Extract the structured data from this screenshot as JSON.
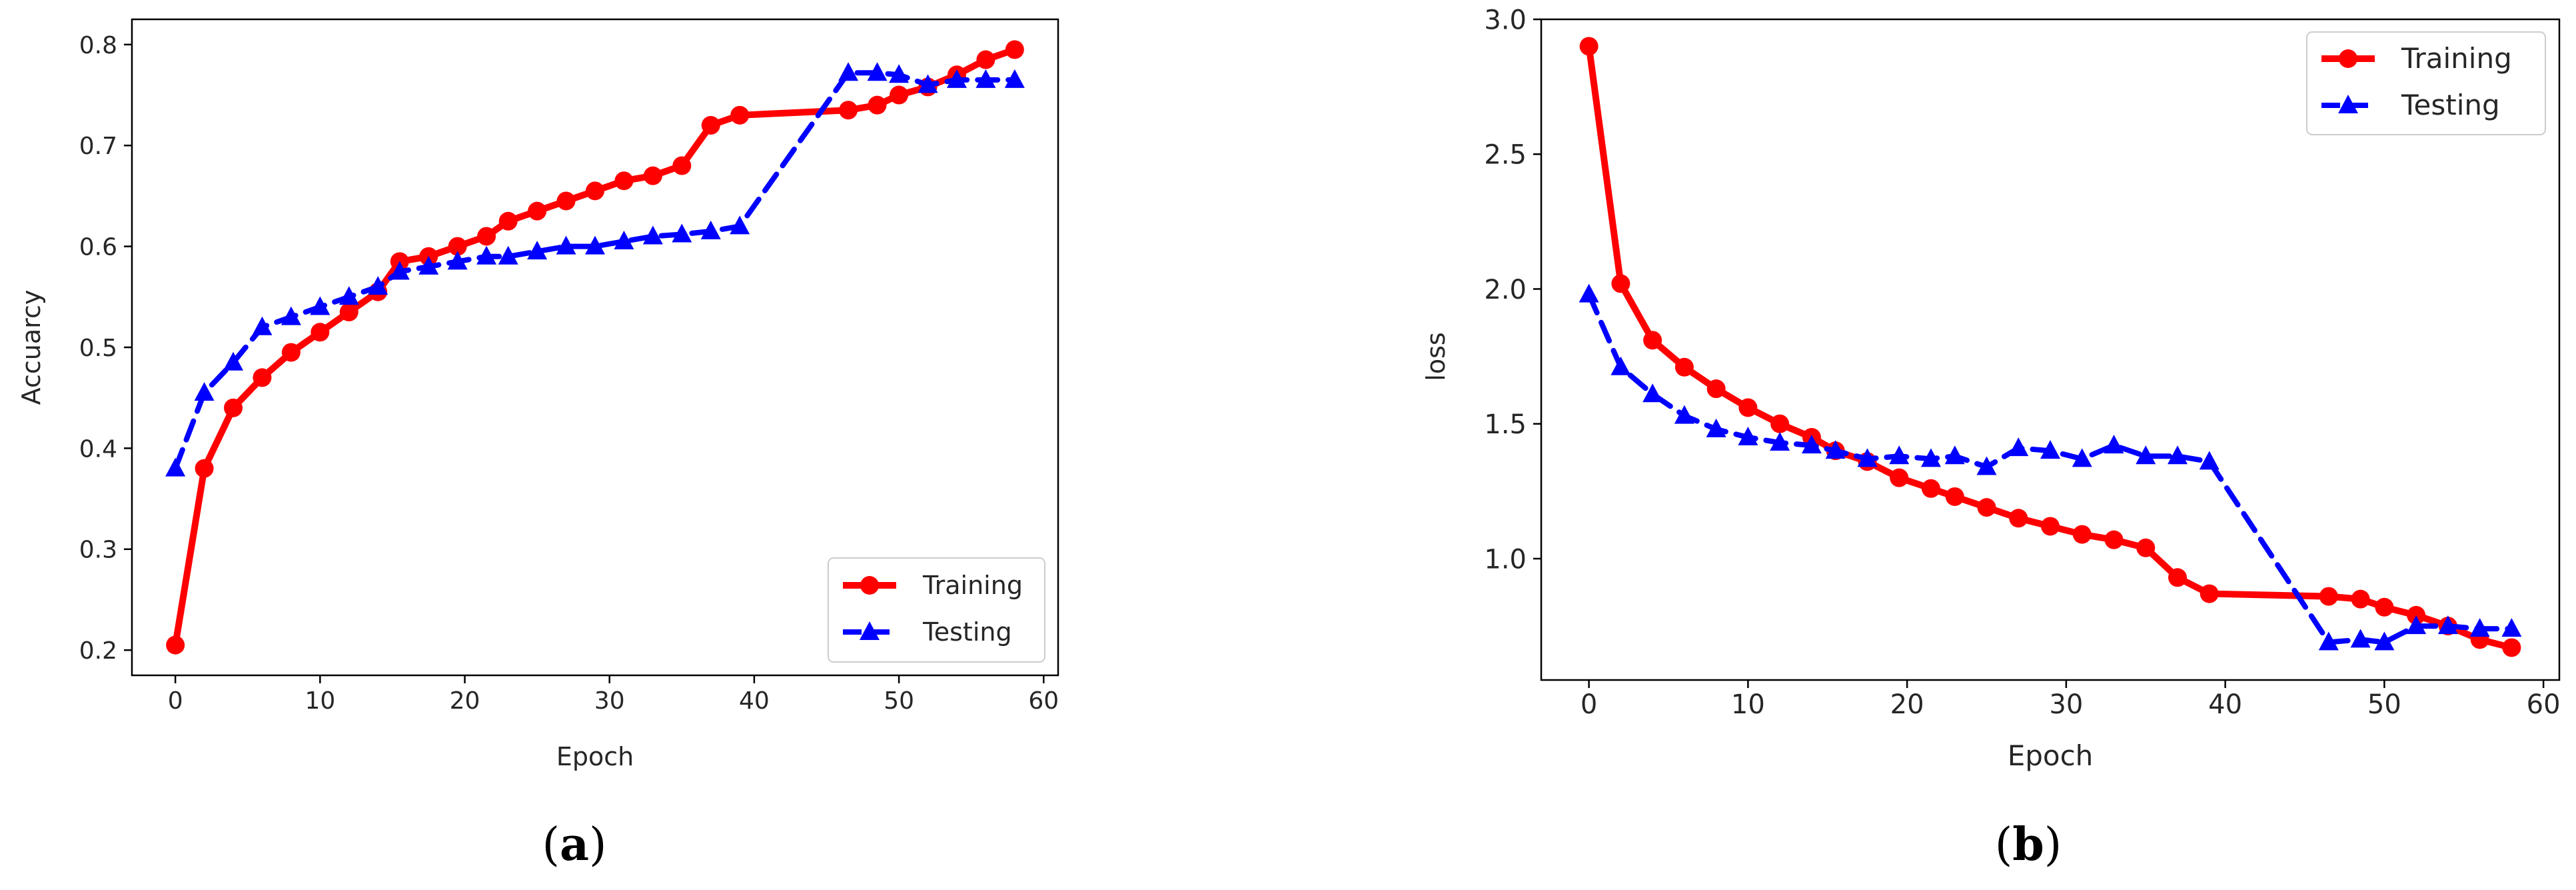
{
  "colors": {
    "training": "#ff0000",
    "testing": "#0000ff",
    "axis": "#000000",
    "text": "#262626"
  },
  "chart_data": [
    {
      "type": "line",
      "caption_letter": "a",
      "xlabel": "Epoch",
      "ylabel": "Accuarcy",
      "xlim": [
        -3.0,
        61.0
      ],
      "ylim": [
        0.175,
        0.825
      ],
      "xticks": [
        0,
        10,
        20,
        30,
        40,
        50,
        60
      ],
      "yticks": [
        0.2,
        0.3,
        0.4,
        0.5,
        0.6,
        0.7,
        0.8
      ],
      "legend_position": "lower-right",
      "series": [
        {
          "name": "Training",
          "color": "#ff0000",
          "style": "solid",
          "marker": "circle",
          "x": [
            0,
            2,
            4,
            6,
            8,
            10,
            12,
            14,
            15.5,
            17.5,
            19.5,
            21.5,
            23,
            25,
            27,
            29,
            31,
            33,
            35,
            37,
            39,
            46.5,
            48.5,
            50,
            52,
            54,
            56,
            58
          ],
          "y": [
            0.205,
            0.38,
            0.44,
            0.47,
            0.495,
            0.515,
            0.535,
            0.555,
            0.585,
            0.59,
            0.6,
            0.61,
            0.625,
            0.635,
            0.645,
            0.655,
            0.665,
            0.67,
            0.68,
            0.72,
            0.73,
            0.735,
            0.74,
            0.75,
            0.758,
            0.77,
            0.785,
            0.795
          ]
        },
        {
          "name": "Testing",
          "color": "#0000ff",
          "style": "dashed",
          "marker": "triangle",
          "x": [
            0,
            2,
            4,
            6,
            8,
            10,
            12,
            14,
            15.5,
            17.5,
            19.5,
            21.5,
            23,
            25,
            27,
            29,
            31,
            33,
            35,
            37,
            39,
            46.5,
            48.5,
            50,
            52,
            54,
            56,
            58
          ],
          "y": [
            0.38,
            0.455,
            0.485,
            0.52,
            0.53,
            0.54,
            0.55,
            0.56,
            0.575,
            0.58,
            0.585,
            0.59,
            0.59,
            0.595,
            0.6,
            0.6,
            0.605,
            0.61,
            0.612,
            0.615,
            0.62,
            0.772,
            0.772,
            0.77,
            0.76,
            0.765,
            0.765,
            0.765
          ]
        }
      ]
    },
    {
      "type": "line",
      "caption_letter": "b",
      "xlabel": "Epoch",
      "ylabel": "loss",
      "xlim": [
        -3.0,
        61.0
      ],
      "ylim": [
        0.55,
        3.0
      ],
      "xticks": [
        0,
        10,
        20,
        30,
        40,
        50,
        60
      ],
      "yticks": [
        1.0,
        1.5,
        2.0,
        2.5,
        3.0
      ],
      "legend_position": "upper-right",
      "series": [
        {
          "name": "Training",
          "color": "#ff0000",
          "style": "solid",
          "marker": "circle",
          "x": [
            0,
            2,
            4,
            6,
            8,
            10,
            12,
            14,
            15.5,
            17.5,
            19.5,
            21.5,
            23,
            25,
            27,
            29,
            31,
            33,
            35,
            37,
            39,
            46.5,
            48.5,
            50,
            52,
            54,
            56,
            58
          ],
          "y": [
            2.9,
            2.02,
            1.81,
            1.71,
            1.63,
            1.56,
            1.5,
            1.45,
            1.4,
            1.36,
            1.3,
            1.26,
            1.23,
            1.19,
            1.15,
            1.12,
            1.09,
            1.07,
            1.04,
            0.93,
            0.87,
            0.86,
            0.85,
            0.82,
            0.79,
            0.75,
            0.7,
            0.67
          ]
        },
        {
          "name": "Testing",
          "color": "#0000ff",
          "style": "dashed",
          "marker": "triangle",
          "x": [
            0,
            2,
            4,
            6,
            8,
            10,
            12,
            14,
            15.5,
            17.5,
            19.5,
            21.5,
            23,
            25,
            27,
            29,
            31,
            33,
            35,
            37,
            39,
            46.5,
            48.5,
            50,
            52,
            54,
            56,
            58
          ],
          "y": [
            1.98,
            1.71,
            1.61,
            1.53,
            1.48,
            1.45,
            1.43,
            1.42,
            1.4,
            1.37,
            1.38,
            1.37,
            1.38,
            1.34,
            1.41,
            1.4,
            1.37,
            1.42,
            1.38,
            1.38,
            1.36,
            0.69,
            0.7,
            0.69,
            0.75,
            0.75,
            0.74,
            0.74
          ]
        }
      ]
    }
  ]
}
